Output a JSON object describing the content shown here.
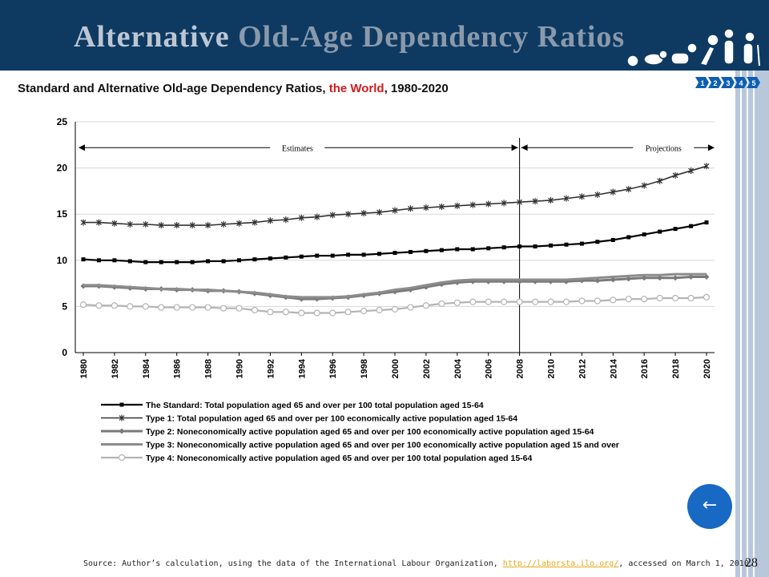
{
  "header": {
    "title_part1": "Alternative",
    "title_part2": "Old-Age Dependency Ratios"
  },
  "subtitle": {
    "part1": "Standard and Alternative Old-age Dependency Ratios,",
    "part2": " the World",
    "part3": ", 1980-2020"
  },
  "nav": {
    "items": [
      "1",
      "2",
      "3",
      "4",
      "5"
    ],
    "color": "#0e5fb4"
  },
  "back_button": {
    "icon": "left-arrow-icon",
    "glyph": "←",
    "color": "#1869c4"
  },
  "source": {
    "prefix": "Source: Author’s calculation, using the data of the International Labour Organization, ",
    "link": "http://laborsta.ilo.org/",
    "suffix": ", accessed on March 1, 2010."
  },
  "page_number": "28",
  "colors": {
    "header_bg": "#0e3a62",
    "accent_red": "#d21c1c",
    "link": "#e6a81a"
  },
  "chart_data": {
    "type": "line",
    "title": "",
    "xlabel": "",
    "ylabel": "",
    "ylim": [
      0,
      25
    ],
    "yticks": [
      0,
      5,
      10,
      15,
      20,
      25
    ],
    "xticks": [
      "1980",
      "1982",
      "1984",
      "1986",
      "1988",
      "1990",
      "1992",
      "1994",
      "1996",
      "1998",
      "2000",
      "2002",
      "2004",
      "2006",
      "2008",
      "2010",
      "2012",
      "2014",
      "2016",
      "2018",
      "2020"
    ],
    "grid": "horizontal",
    "legend_position": "bottom",
    "annotations": {
      "divider_year": 2008,
      "left_label": "Estimates",
      "right_label": "Projections"
    },
    "x": [
      1980,
      1981,
      1982,
      1983,
      1984,
      1985,
      1986,
      1987,
      1988,
      1989,
      1990,
      1991,
      1992,
      1993,
      1994,
      1995,
      1996,
      1997,
      1998,
      1999,
      2000,
      2001,
      2002,
      2003,
      2004,
      2005,
      2006,
      2007,
      2008,
      2009,
      2010,
      2011,
      2012,
      2013,
      2014,
      2015,
      2016,
      2017,
      2018,
      2019,
      2020
    ],
    "series": [
      {
        "name": "The Standard: Total population aged 65 and over per 100 total population aged 15-64",
        "color": "#000000",
        "marker": "square",
        "values": [
          10.1,
          10.0,
          10.0,
          9.9,
          9.8,
          9.8,
          9.8,
          9.8,
          9.9,
          9.9,
          10.0,
          10.1,
          10.2,
          10.3,
          10.4,
          10.5,
          10.5,
          10.6,
          10.6,
          10.7,
          10.8,
          10.9,
          11.0,
          11.1,
          11.2,
          11.2,
          11.3,
          11.4,
          11.5,
          11.5,
          11.6,
          11.7,
          11.8,
          12.0,
          12.2,
          12.5,
          12.8,
          13.1,
          13.4,
          13.7,
          14.1
        ]
      },
      {
        "name": "Type 1: Total population aged 65 and over per 100 economically active population aged 15-64",
        "color": "#333333",
        "marker": "star",
        "values": [
          14.1,
          14.1,
          14.0,
          13.9,
          13.9,
          13.8,
          13.8,
          13.8,
          13.8,
          13.9,
          14.0,
          14.1,
          14.3,
          14.4,
          14.6,
          14.7,
          14.9,
          15.0,
          15.1,
          15.2,
          15.4,
          15.6,
          15.7,
          15.8,
          15.9,
          16.0,
          16.1,
          16.2,
          16.3,
          16.4,
          16.5,
          16.7,
          16.9,
          17.1,
          17.4,
          17.7,
          18.1,
          18.6,
          19.2,
          19.7,
          20.2
        ]
      },
      {
        "name": "Type 2: Noneconomically active population aged 65 and over per 100 economically active population aged 15-64",
        "color": "#7a7a7a",
        "marker": "diamond",
        "values": [
          7.2,
          7.2,
          7.1,
          7.0,
          6.9,
          6.9,
          6.8,
          6.8,
          6.7,
          6.7,
          6.6,
          6.4,
          6.2,
          6.0,
          5.8,
          5.8,
          5.9,
          6.0,
          6.2,
          6.4,
          6.6,
          6.8,
          7.1,
          7.4,
          7.6,
          7.7,
          7.7,
          7.7,
          7.7,
          7.7,
          7.7,
          7.7,
          7.8,
          7.8,
          7.9,
          8.0,
          8.1,
          8.1,
          8.1,
          8.2,
          8.2
        ]
      },
      {
        "name": "Type 3: Noneconomically active population aged 65 and over per 100 economically active population aged 15 and over",
        "color": "#8c8c8c",
        "marker": "line",
        "values": [
          7.3,
          7.3,
          7.2,
          7.1,
          7.0,
          6.9,
          6.9,
          6.8,
          6.8,
          6.7,
          6.6,
          6.5,
          6.3,
          6.1,
          6.0,
          6.0,
          6.0,
          6.1,
          6.3,
          6.5,
          6.8,
          7.0,
          7.3,
          7.6,
          7.8,
          7.9,
          7.9,
          7.9,
          7.9,
          7.9,
          7.9,
          7.9,
          8.0,
          8.1,
          8.2,
          8.3,
          8.4,
          8.4,
          8.5,
          8.5,
          8.5
        ]
      },
      {
        "name": "Type 4: Noneconomically active population aged 65 and over per 100 total population aged 15-64",
        "color": "#b4b4b4",
        "marker": "circle",
        "values": [
          5.2,
          5.1,
          5.1,
          5.0,
          5.0,
          4.9,
          4.9,
          4.9,
          4.9,
          4.8,
          4.8,
          4.6,
          4.4,
          4.4,
          4.3,
          4.3,
          4.3,
          4.4,
          4.5,
          4.6,
          4.7,
          4.9,
          5.1,
          5.3,
          5.4,
          5.5,
          5.5,
          5.5,
          5.5,
          5.5,
          5.5,
          5.5,
          5.6,
          5.6,
          5.7,
          5.8,
          5.8,
          5.9,
          5.9,
          5.9,
          6.0
        ]
      }
    ]
  }
}
